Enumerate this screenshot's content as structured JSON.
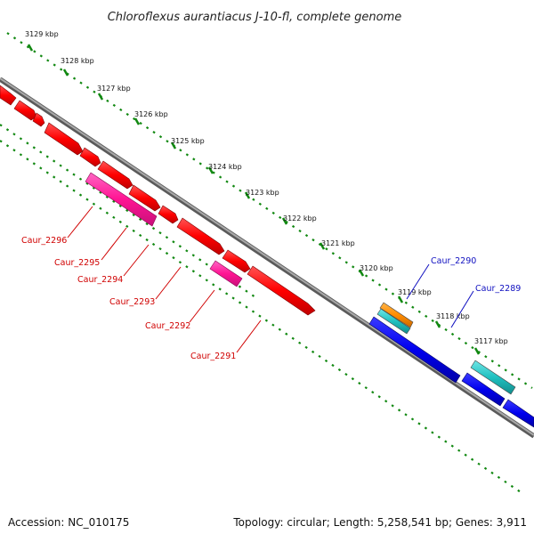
{
  "title": "Chloroflexus aurantiacus J-10-fl, complete genome",
  "kbp_labels": [
    "3129 kbp",
    "3128 kbp",
    "3127 kbp",
    "3126 kbp",
    "3125 kbp",
    "3124 kbp",
    "3123 kbp",
    "3122 kbp",
    "3121 kbp",
    "3120 kbp",
    "3119 kbp",
    "3118 kbp",
    "3117 kbp"
  ],
  "genes": [
    {
      "label": "Caur_2296",
      "color": "#d00000"
    },
    {
      "label": "Caur_2295",
      "color": "#d00000"
    },
    {
      "label": "Caur_2294",
      "color": "#d00000"
    },
    {
      "label": "Caur_2293",
      "color": "#d00000"
    },
    {
      "label": "Caur_2292",
      "color": "#d00000"
    },
    {
      "label": "Caur_2291",
      "color": "#d00000"
    },
    {
      "label": "Caur_2290",
      "color": "#1010c0"
    },
    {
      "label": "Caur_2289",
      "color": "#1010c0"
    }
  ],
  "colors": {
    "forward_cds": "#ff0000",
    "reverse_cds": "#0000ee",
    "pink_feature": "#ff1493",
    "cyan_feature": "#20c0c0",
    "orange_feature": "#ff8c00",
    "backbone": "#808080",
    "ticks": "#118811"
  },
  "footer": {
    "accession": "Accession: NC_010175",
    "summary": "Topology: circular; Length: 5,258,541 bp; Genes: 3,911"
  }
}
